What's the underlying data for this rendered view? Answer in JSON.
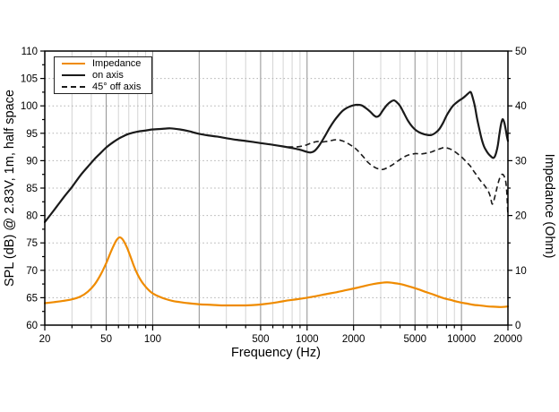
{
  "figure": {
    "xlabel": "Frequency (Hz)",
    "ylabel_left": "SPL (dB) @ 2.83V, 1m, half space",
    "ylabel_right": "Impedance (Ohm)"
  },
  "chart_data": {
    "type": "line",
    "x_scale": "log",
    "xlim": [
      20,
      20000
    ],
    "ylim_left": [
      60,
      110
    ],
    "ylim_right": [
      0,
      50
    ],
    "grid": true,
    "legend_position": "top-left",
    "x_tick_labels": [
      20,
      50,
      100,
      500,
      1000,
      2000,
      5000,
      10000,
      20000
    ],
    "y_left_tick_labels": [
      60,
      65,
      70,
      75,
      80,
      85,
      90,
      95,
      100,
      105,
      110
    ],
    "y_right_tick_labels": [
      0,
      10,
      20,
      30,
      40,
      50
    ],
    "colors": {
      "impedance": "#EF8B00",
      "black": "#1a1a1a",
      "grid_minor": "#d4d4d4",
      "grid_major": "#8f8f8f",
      "grid_horizontal": "#b0b0b0",
      "frame": "#000000"
    },
    "series": [
      {
        "name": "Impedance",
        "axis": "right",
        "unit": "Ohm",
        "color": "#EF8B00",
        "style": "solid",
        "points": [
          [
            20,
            4.0
          ],
          [
            23,
            4.2
          ],
          [
            26,
            4.4
          ],
          [
            30,
            4.7
          ],
          [
            34,
            5.2
          ],
          [
            38,
            6.1
          ],
          [
            42,
            7.4
          ],
          [
            46,
            9.2
          ],
          [
            50,
            11.3
          ],
          [
            54,
            13.6
          ],
          [
            58,
            15.4
          ],
          [
            61,
            16.0
          ],
          [
            64,
            15.6
          ],
          [
            68,
            14.2
          ],
          [
            72,
            12.4
          ],
          [
            76,
            10.6
          ],
          [
            80,
            9.2
          ],
          [
            85,
            7.9
          ],
          [
            90,
            7.0
          ],
          [
            95,
            6.3
          ],
          [
            100,
            5.8
          ],
          [
            110,
            5.2
          ],
          [
            120,
            4.8
          ],
          [
            135,
            4.4
          ],
          [
            150,
            4.2
          ],
          [
            170,
            4.0
          ],
          [
            200,
            3.8
          ],
          [
            240,
            3.7
          ],
          [
            280,
            3.6
          ],
          [
            330,
            3.6
          ],
          [
            400,
            3.6
          ],
          [
            470,
            3.7
          ],
          [
            550,
            3.9
          ],
          [
            650,
            4.2
          ],
          [
            750,
            4.5
          ],
          [
            850,
            4.7
          ],
          [
            1000,
            5.0
          ],
          [
            1150,
            5.3
          ],
          [
            1350,
            5.7
          ],
          [
            1550,
            6.0
          ],
          [
            1800,
            6.4
          ],
          [
            2100,
            6.8
          ],
          [
            2400,
            7.2
          ],
          [
            2700,
            7.5
          ],
          [
            3000,
            7.7
          ],
          [
            3300,
            7.8
          ],
          [
            3600,
            7.7
          ],
          [
            4000,
            7.5
          ],
          [
            4400,
            7.2
          ],
          [
            4800,
            6.9
          ],
          [
            5300,
            6.5
          ],
          [
            5800,
            6.1
          ],
          [
            6400,
            5.7
          ],
          [
            7000,
            5.3
          ],
          [
            7700,
            4.9
          ],
          [
            8500,
            4.6
          ],
          [
            9300,
            4.3
          ],
          [
            10000,
            4.1
          ],
          [
            11000,
            3.9
          ],
          [
            12000,
            3.7
          ],
          [
            13000,
            3.6
          ],
          [
            14000,
            3.5
          ],
          [
            15000,
            3.4
          ],
          [
            16500,
            3.35
          ],
          [
            18000,
            3.3
          ],
          [
            20000,
            3.4
          ]
        ]
      },
      {
        "name": "on axis",
        "axis": "left",
        "unit": "dB",
        "color": "#1a1a1a",
        "style": "solid",
        "points": [
          [
            20,
            78.8
          ],
          [
            22,
            80.3
          ],
          [
            24,
            81.7
          ],
          [
            27,
            83.6
          ],
          [
            30,
            85.2
          ],
          [
            34,
            87.3
          ],
          [
            38,
            88.9
          ],
          [
            42,
            90.3
          ],
          [
            46,
            91.4
          ],
          [
            50,
            92.4
          ],
          [
            55,
            93.3
          ],
          [
            60,
            94.0
          ],
          [
            65,
            94.5
          ],
          [
            70,
            94.9
          ],
          [
            80,
            95.3
          ],
          [
            90,
            95.5
          ],
          [
            100,
            95.7
          ],
          [
            115,
            95.8
          ],
          [
            130,
            95.9
          ],
          [
            150,
            95.7
          ],
          [
            170,
            95.4
          ],
          [
            200,
            94.9
          ],
          [
            230,
            94.6
          ],
          [
            260,
            94.4
          ],
          [
            300,
            94.1
          ],
          [
            350,
            93.8
          ],
          [
            400,
            93.6
          ],
          [
            450,
            93.4
          ],
          [
            500,
            93.2
          ],
          [
            600,
            92.9
          ],
          [
            700,
            92.6
          ],
          [
            800,
            92.3
          ],
          [
            900,
            92.0
          ],
          [
            1000,
            91.6
          ],
          [
            1060,
            91.5
          ],
          [
            1120,
            91.8
          ],
          [
            1200,
            92.8
          ],
          [
            1300,
            94.4
          ],
          [
            1400,
            96.0
          ],
          [
            1500,
            97.3
          ],
          [
            1600,
            98.3
          ],
          [
            1700,
            99.1
          ],
          [
            1800,
            99.6
          ],
          [
            1900,
            99.9
          ],
          [
            2000,
            100.1
          ],
          [
            2100,
            100.2
          ],
          [
            2250,
            100.1
          ],
          [
            2400,
            99.6
          ],
          [
            2550,
            99.0
          ],
          [
            2700,
            98.3
          ],
          [
            2820,
            98.0
          ],
          [
            2950,
            98.3
          ],
          [
            3100,
            99.2
          ],
          [
            3300,
            100.2
          ],
          [
            3500,
            100.8
          ],
          [
            3650,
            101.0
          ],
          [
            3800,
            100.7
          ],
          [
            4000,
            100.0
          ],
          [
            4200,
            98.9
          ],
          [
            4500,
            97.3
          ],
          [
            4800,
            96.2
          ],
          [
            5100,
            95.5
          ],
          [
            5500,
            95.0
          ],
          [
            6000,
            94.7
          ],
          [
            6400,
            94.7
          ],
          [
            6800,
            95.1
          ],
          [
            7200,
            95.8
          ],
          [
            7600,
            96.9
          ],
          [
            8000,
            98.2
          ],
          [
            8400,
            99.2
          ],
          [
            8800,
            100.0
          ],
          [
            9200,
            100.5
          ],
          [
            9700,
            101.0
          ],
          [
            10200,
            101.4
          ],
          [
            10700,
            101.9
          ],
          [
            11200,
            102.4
          ],
          [
            11500,
            102.5
          ],
          [
            11800,
            101.6
          ],
          [
            12200,
            100.0
          ],
          [
            12600,
            97.8
          ],
          [
            13000,
            96.0
          ],
          [
            13500,
            94.0
          ],
          [
            14000,
            92.6
          ],
          [
            14500,
            91.8
          ],
          [
            15000,
            91.2
          ],
          [
            15500,
            90.8
          ],
          [
            16000,
            90.5
          ],
          [
            16400,
            90.7
          ],
          [
            16800,
            91.5
          ],
          [
            17200,
            92.8
          ],
          [
            17600,
            94.8
          ],
          [
            18000,
            96.5
          ],
          [
            18400,
            97.5
          ],
          [
            18700,
            97.4
          ],
          [
            19000,
            96.8
          ],
          [
            19400,
            95.5
          ],
          [
            19700,
            94.4
          ],
          [
            20000,
            93.6
          ]
        ]
      },
      {
        "name": "45° off axis",
        "axis": "left",
        "unit": "dB",
        "color": "#1a1a1a",
        "style": "dashed",
        "points": [
          [
            750,
            92.5
          ],
          [
            800,
            92.5
          ],
          [
            850,
            92.5
          ],
          [
            900,
            92.6
          ],
          [
            950,
            92.7
          ],
          [
            1000,
            92.9
          ],
          [
            1060,
            93.2
          ],
          [
            1120,
            93.4
          ],
          [
            1180,
            93.5
          ],
          [
            1250,
            93.4
          ],
          [
            1320,
            93.5
          ],
          [
            1400,
            93.6
          ],
          [
            1500,
            93.8
          ],
          [
            1600,
            93.8
          ],
          [
            1700,
            93.6
          ],
          [
            1800,
            93.3
          ],
          [
            1900,
            92.9
          ],
          [
            2000,
            92.5
          ],
          [
            2100,
            92.0
          ],
          [
            2200,
            91.4
          ],
          [
            2350,
            90.5
          ],
          [
            2500,
            89.6
          ],
          [
            2700,
            88.9
          ],
          [
            2900,
            88.5
          ],
          [
            3100,
            88.4
          ],
          [
            3300,
            88.7
          ],
          [
            3600,
            89.3
          ],
          [
            3900,
            90.0
          ],
          [
            4200,
            90.6
          ],
          [
            4500,
            91.0
          ],
          [
            4800,
            91.2
          ],
          [
            5100,
            91.3
          ],
          [
            5400,
            91.2
          ],
          [
            5700,
            91.3
          ],
          [
            6000,
            91.4
          ],
          [
            6400,
            91.6
          ],
          [
            6800,
            91.9
          ],
          [
            7300,
            92.2
          ],
          [
            7700,
            92.4
          ],
          [
            8100,
            92.3
          ],
          [
            8500,
            92.1
          ],
          [
            9000,
            91.7
          ],
          [
            9500,
            91.2
          ],
          [
            10000,
            90.7
          ],
          [
            10500,
            90.1
          ],
          [
            11000,
            89.5
          ],
          [
            11500,
            88.9
          ],
          [
            12000,
            88.1
          ],
          [
            12500,
            87.4
          ],
          [
            13000,
            86.7
          ],
          [
            13500,
            86.1
          ],
          [
            14000,
            85.6
          ],
          [
            14500,
            85.0
          ],
          [
            15000,
            84.3
          ],
          [
            15400,
            83.4
          ],
          [
            15800,
            82.1
          ],
          [
            16200,
            82.7
          ],
          [
            16600,
            83.9
          ],
          [
            17000,
            85.1
          ],
          [
            17400,
            86.2
          ],
          [
            17800,
            87.0
          ],
          [
            18300,
            87.5
          ],
          [
            18700,
            87.4
          ],
          [
            19000,
            87.0
          ],
          [
            19300,
            86.4
          ],
          [
            19600,
            84.8
          ],
          [
            19800,
            82.6
          ],
          [
            20000,
            79.9
          ]
        ]
      }
    ]
  }
}
